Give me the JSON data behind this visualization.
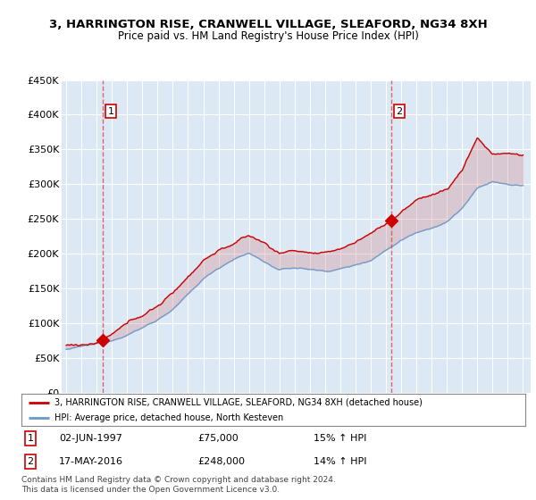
{
  "title": "3, HARRINGTON RISE, CRANWELL VILLAGE, SLEAFORD, NG34 8XH",
  "subtitle": "Price paid vs. HM Land Registry's House Price Index (HPI)",
  "ylim": [
    0,
    450000
  ],
  "yticks": [
    0,
    50000,
    100000,
    150000,
    200000,
    250000,
    300000,
    350000,
    400000,
    450000
  ],
  "ytick_labels": [
    "£0",
    "£50K",
    "£100K",
    "£150K",
    "£200K",
    "£250K",
    "£300K",
    "£350K",
    "£400K",
    "£450K"
  ],
  "background_color": "#ffffff",
  "plot_bg_color": "#dce9f5",
  "grid_color": "#ffffff",
  "sale1_year": 1997.42,
  "sale1_price": 75000,
  "sale2_year": 2016.37,
  "sale2_price": 248000,
  "hpi_line_color": "#6699cc",
  "price_line_color": "#cc0000",
  "dashed_line_color": "#dd4444",
  "legend_label_price": "3, HARRINGTON RISE, CRANWELL VILLAGE, SLEAFORD, NG34 8XH (detached house)",
  "legend_label_hpi": "HPI: Average price, detached house, North Kesteven",
  "footer1": "Contains HM Land Registry data © Crown copyright and database right 2024.",
  "footer2": "This data is licensed under the Open Government Licence v3.0."
}
